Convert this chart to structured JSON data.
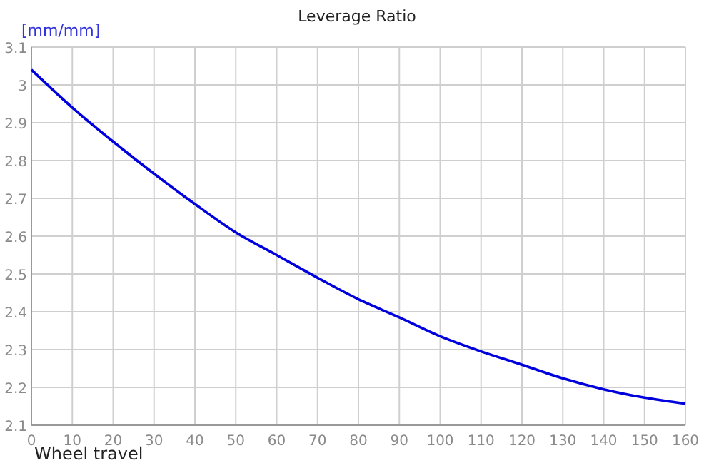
{
  "chart_data": {
    "type": "line",
    "title": "Leverage Ratio",
    "xlabel": "Wheel travel",
    "ylabel": "[mm/mm]",
    "x": [
      0,
      10,
      20,
      30,
      40,
      50,
      60,
      70,
      80,
      90,
      100,
      110,
      120,
      130,
      140,
      150,
      160
    ],
    "series": [
      {
        "color": "#0000dd",
        "values": [
          3.04,
          2.94,
          2.85,
          2.765,
          2.685,
          2.61,
          2.55,
          2.49,
          2.433,
          2.385,
          2.335,
          2.295,
          2.26,
          2.224,
          2.195,
          2.173,
          2.157
        ]
      }
    ],
    "xlim": [
      0,
      160
    ],
    "xticks": [
      0,
      10,
      20,
      30,
      40,
      50,
      60,
      70,
      80,
      90,
      100,
      110,
      120,
      130,
      140,
      150,
      160
    ],
    "ylim": [
      2.1,
      3.1
    ],
    "yticks": [
      2.1,
      2.2,
      2.3,
      2.4,
      2.5,
      2.6,
      2.7,
      2.8,
      2.9,
      3,
      3.1
    ],
    "grid": true,
    "marker": "none",
    "line_style": "solid"
  }
}
